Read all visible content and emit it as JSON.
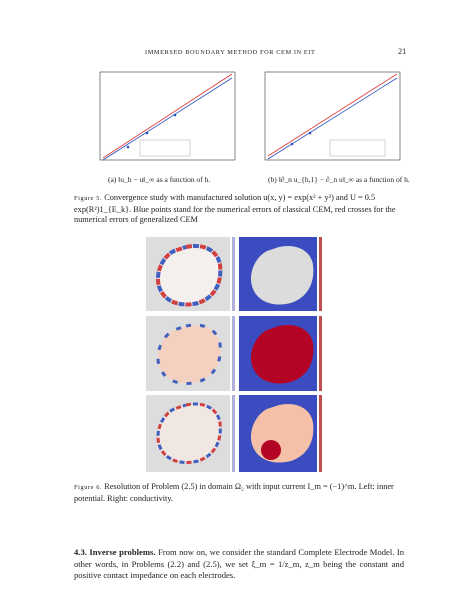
{
  "header": {
    "running_title": "IMMERSED BOUNDARY METHOD FOR CEM IN EIT",
    "page_number": "21"
  },
  "figure5": {
    "subcaption_a": "(a) ‖u_h − u‖_∞ as a function of h.",
    "subcaption_b": "(b) ‖∂_n u_{h,1} − ∂_n u‖_∞ as a function of h.",
    "label": "Figure 5.",
    "caption": "Convergence study with manufactured solution u(x, y) = exp(x² + y²) and U = 0.5 exp(R²)1_{E_k}. Blue points stand for the numerical errors of classical CEM, red crosses for the numerical errors of generalized CEM"
  },
  "figure6": {
    "label": "Figure 6.",
    "caption": "Resolution of Problem (2.5) in domain Ω₂ with input current I_m = (−1)^m. Left: inner potential. Right: conductivity."
  },
  "section": {
    "heading": "4.3. Inverse problems.",
    "text": "From now on, we consider the standard Complete Electrode Model. In other words, in Problems (2.2) and (2.5), we set ξ_m = 1/z_m, z_m being the constant and positive contact impedance on each electrodes."
  }
}
